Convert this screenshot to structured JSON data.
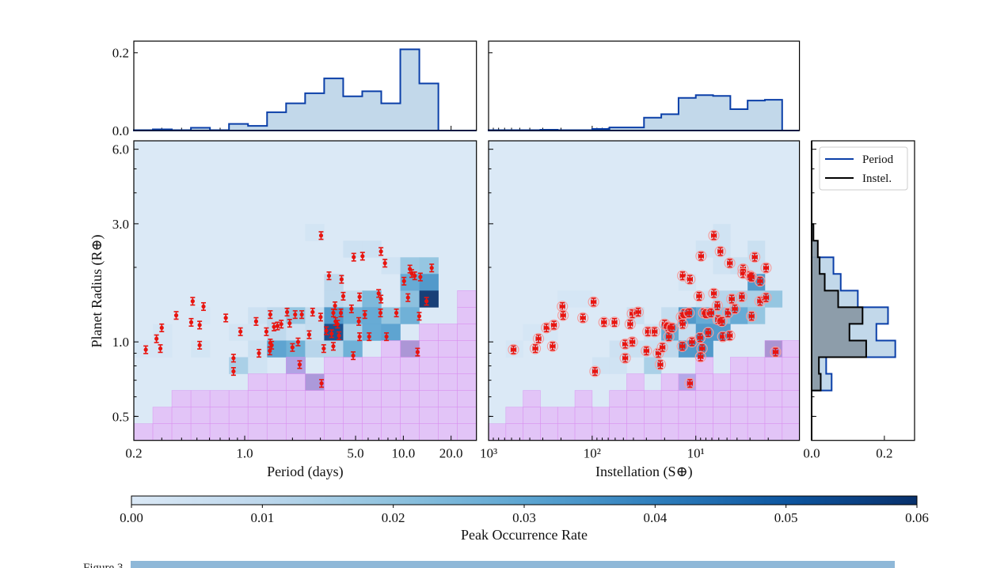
{
  "figure": {
    "caption_label": "Figure 3"
  },
  "chart_data": [
    {
      "id": "period-radius",
      "type": "heatmap",
      "xlabel": "Period (days)",
      "ylabel": "Planet Radius (R⊕)",
      "x_scale": "log",
      "y_scale": "log",
      "xlim": [
        0.2,
        28.9
      ],
      "ylim": [
        0.4,
        6.49
      ],
      "x_ticks": [
        {
          "v": 0.2,
          "label": "0.2"
        },
        {
          "v": 1.0,
          "label": "1.0"
        },
        {
          "v": 5.0,
          "label": "5.0"
        },
        {
          "v": 10.0,
          "label": "10.0"
        },
        {
          "v": 20.0,
          "label": "20.0"
        }
      ],
      "y_ticks": [
        {
          "v": 6.0,
          "label": "6.0"
        },
        {
          "v": 3.0,
          "label": "3.0"
        },
        {
          "v": 1.0,
          "label": "1.0"
        },
        {
          "v": 0.5,
          "label": "0.5"
        }
      ],
      "bins": {
        "x_n": 18,
        "y_n": 18
      },
      "cells": [
        [
          9,
          12,
          0.003
        ],
        [
          11,
          11,
          0.005
        ],
        [
          12,
          11,
          0.005
        ],
        [
          13,
          10,
          0.004
        ],
        [
          14,
          10,
          0.018
        ],
        [
          15,
          10,
          0.02
        ],
        [
          14,
          9,
          0.03
        ],
        [
          15,
          9,
          0.035
        ],
        [
          10,
          9,
          0.01
        ],
        [
          14,
          8,
          0.022
        ],
        [
          15,
          8,
          0.06
        ],
        [
          10,
          8,
          0.01
        ],
        [
          11,
          8,
          0.008
        ],
        [
          12,
          8,
          0.025
        ],
        [
          6,
          7,
          0.005
        ],
        [
          7,
          7,
          0.01
        ],
        [
          8,
          7,
          0.02
        ],
        [
          9,
          7,
          0.008
        ],
        [
          10,
          7,
          0.035
        ],
        [
          11,
          7,
          0.028
        ],
        [
          12,
          7,
          0.03
        ],
        [
          13,
          7,
          0.02
        ],
        [
          14,
          7,
          0.028
        ],
        [
          5,
          6,
          0.003
        ],
        [
          6,
          6,
          0.003
        ],
        [
          7,
          6,
          0.01
        ],
        [
          8,
          6,
          0.005
        ],
        [
          9,
          6,
          0.008
        ],
        [
          10,
          6,
          0.055
        ],
        [
          11,
          6,
          0.015
        ],
        [
          12,
          6,
          0.03
        ],
        [
          13,
          6,
          0.032
        ],
        [
          0,
          5,
          0.002
        ],
        [
          1,
          5,
          0.002
        ],
        [
          3,
          5,
          0.003
        ],
        [
          6,
          5,
          0.006
        ],
        [
          7,
          5,
          0.032
        ],
        [
          8,
          5,
          0.028
        ],
        [
          9,
          5,
          0.012
        ],
        [
          10,
          5,
          0.012
        ],
        [
          11,
          5,
          0.028
        ],
        [
          14,
          5,
          0.058
        ],
        [
          5,
          4,
          0.015
        ],
        [
          6,
          4,
          0.004
        ],
        [
          8,
          4,
          0.045
        ],
        [
          9,
          3,
          0.055
        ],
        [
          1,
          6,
          0.002
        ],
        [
          3,
          7,
          0.002
        ]
      ],
      "undetectable_rows_per_column": [
        1,
        2,
        3,
        3,
        3,
        3,
        4,
        4,
        4,
        4,
        5,
        5,
        5,
        6,
        6,
        7,
        7,
        9
      ],
      "undetectable_extra_cells": [
        [
          8,
          4
        ]
      ],
      "r_err_frac": 0.035,
      "points": [
        [
          0.238,
          0.93
        ],
        [
          0.278,
          1.03
        ],
        [
          0.294,
          0.94
        ],
        [
          0.3,
          1.14
        ],
        [
          0.37,
          1.28
        ],
        [
          0.47,
          1.46
        ],
        [
          0.46,
          1.2
        ],
        [
          0.52,
          1.17
        ],
        [
          0.52,
          0.97
        ],
        [
          0.55,
          1.39
        ],
        [
          0.76,
          1.25
        ],
        [
          0.94,
          1.1
        ],
        [
          0.85,
          0.86
        ],
        [
          0.85,
          0.76
        ],
        [
          1.18,
          1.21
        ],
        [
          1.23,
          0.9
        ],
        [
          1.37,
          1.1
        ],
        [
          1.45,
          1.29
        ],
        [
          1.45,
          0.99
        ],
        [
          1.44,
          0.92
        ],
        [
          1.48,
          0.97
        ],
        [
          1.53,
          1.15
        ],
        [
          1.61,
          1.16
        ],
        [
          1.7,
          1.18
        ],
        [
          1.85,
          1.32
        ],
        [
          1.92,
          1.19
        ],
        [
          2.08,
          1.29
        ],
        [
          2.29,
          1.29
        ],
        [
          2.0,
          0.95
        ],
        [
          2.17,
          1.0
        ],
        [
          2.22,
          0.81
        ],
        [
          2.68,
          1.32
        ],
        [
          2.55,
          1.07
        ],
        [
          3.03,
          2.69
        ],
        [
          3.01,
          1.26
        ],
        [
          3.15,
          0.94
        ],
        [
          3.05,
          0.68
        ],
        [
          3.4,
          1.85
        ],
        [
          4.08,
          1.79
        ],
        [
          3.27,
          1.11
        ],
        [
          3.53,
          1.08
        ],
        [
          3.62,
          1.31
        ],
        [
          3.71,
          1.4
        ],
        [
          3.74,
          1.21
        ],
        [
          3.85,
          1.18
        ],
        [
          3.93,
          1.06
        ],
        [
          4.04,
          1.31
        ],
        [
          3.62,
          0.96
        ],
        [
          4.18,
          1.53
        ],
        [
          4.71,
          1.36
        ],
        [
          4.87,
          2.2
        ],
        [
          5.53,
          2.22
        ],
        [
          5.3,
          1.52
        ],
        [
          5.24,
          1.21
        ],
        [
          5.3,
          1.05
        ],
        [
          4.83,
          0.88
        ],
        [
          5.72,
          1.29
        ],
        [
          6.09,
          1.05
        ],
        [
          6.99,
          1.57
        ],
        [
          7.23,
          1.49
        ],
        [
          7.23,
          2.32
        ],
        [
          7.66,
          2.08
        ],
        [
          7.18,
          1.31
        ],
        [
          7.83,
          1.05
        ],
        [
          9.04,
          1.31
        ],
        [
          10.1,
          1.76
        ],
        [
          10.7,
          1.51
        ],
        [
          11.0,
          1.97
        ],
        [
          11.3,
          1.89
        ],
        [
          11.8,
          1.85
        ],
        [
          12.8,
          1.83
        ],
        [
          12.6,
          1.27
        ],
        [
          12.3,
          0.91
        ],
        [
          14.0,
          1.46
        ],
        [
          15.1,
          1.99
        ]
      ]
    },
    {
      "id": "instellation-radius",
      "type": "heatmap",
      "xlabel": "Instellation (S⊕)",
      "x_scale": "log",
      "y_scale": "log",
      "x_reversed": true,
      "xlim": [
        1000,
        1.0
      ],
      "ylim": [
        0.4,
        6.49
      ],
      "x_ticks": [
        {
          "v": 1000,
          "label": "10³"
        },
        {
          "v": 100,
          "label": "10²"
        },
        {
          "v": 10,
          "label": "10¹"
        }
      ],
      "bins": {
        "x_n": 18,
        "y_n": 18
      },
      "cells": [
        [
          13,
          12,
          0.004
        ],
        [
          12,
          11,
          0.004
        ],
        [
          13,
          11,
          0.004
        ],
        [
          15,
          11,
          0.006
        ],
        [
          13,
          10,
          0.004
        ],
        [
          14,
          10,
          0.006
        ],
        [
          15,
          10,
          0.006
        ],
        [
          11,
          9,
          0.003
        ],
        [
          15,
          9,
          0.035
        ],
        [
          4,
          8,
          0.002
        ],
        [
          5,
          8,
          0.002
        ],
        [
          12,
          8,
          0.004
        ],
        [
          13,
          8,
          0.012
        ],
        [
          14,
          8,
          0.015
        ],
        [
          15,
          8,
          0.015
        ],
        [
          16,
          8,
          0.02
        ],
        [
          8,
          7,
          0.006
        ],
        [
          10,
          7,
          0.008
        ],
        [
          11,
          7,
          0.035
        ],
        [
          12,
          7,
          0.03
        ],
        [
          13,
          7,
          0.022
        ],
        [
          14,
          7,
          0.03
        ],
        [
          15,
          7,
          0.02
        ],
        [
          2,
          6,
          0.002
        ],
        [
          3,
          6,
          0.002
        ],
        [
          9,
          6,
          0.004
        ],
        [
          10,
          6,
          0.03
        ],
        [
          11,
          6,
          0.008
        ],
        [
          12,
          6,
          0.035
        ],
        [
          13,
          6,
          0.035
        ],
        [
          1,
          5,
          0.002
        ],
        [
          7,
          5,
          0.005
        ],
        [
          8,
          5,
          0.006
        ],
        [
          9,
          5,
          0.006
        ],
        [
          10,
          5,
          0.01
        ],
        [
          11,
          5,
          0.035
        ],
        [
          12,
          5,
          0.035
        ],
        [
          16,
          5,
          0.06
        ],
        [
          6,
          4,
          0.004
        ],
        [
          7,
          4,
          0.004
        ],
        [
          9,
          4,
          0.015
        ],
        [
          11,
          3,
          0.04
        ]
      ],
      "undetectable_rows_per_column": [
        1,
        2,
        3,
        2,
        2,
        3,
        2,
        3,
        4,
        3,
        4,
        4,
        5,
        4,
        5,
        5,
        6,
        6
      ],
      "undetectable_extra_cells": [],
      "r_err_frac": 0.035,
      "s_err_frac": 0.05,
      "points": [
        [
          575,
          0.93
        ],
        [
          354,
          0.94
        ],
        [
          330,
          1.03
        ],
        [
          276,
          1.14
        ],
        [
          241,
          0.96
        ],
        [
          234,
          1.17
        ],
        [
          194,
          1.39
        ],
        [
          191,
          1.28
        ],
        [
          123,
          1.25
        ],
        [
          97,
          1.45
        ],
        [
          94,
          0.76
        ],
        [
          77,
          1.2
        ],
        [
          61,
          1.2
        ],
        [
          48,
          0.98
        ],
        [
          48,
          0.86
        ],
        [
          43,
          1.18
        ],
        [
          41,
          1.3
        ],
        [
          41,
          1.0
        ],
        [
          36,
          1.32
        ],
        [
          30,
          0.92
        ],
        [
          29,
          1.1
        ],
        [
          25,
          1.1
        ],
        [
          23,
          0.9
        ],
        [
          22,
          0.81
        ],
        [
          21,
          0.95
        ],
        [
          20,
          1.18
        ],
        [
          18.5,
          1.15
        ],
        [
          18.2,
          1.05
        ],
        [
          17,
          1.14
        ],
        [
          13.8,
          1.26
        ],
        [
          13.4,
          1.18
        ],
        [
          13.4,
          1.85
        ],
        [
          12.9,
          1.3
        ],
        [
          11.4,
          1.79
        ],
        [
          11.6,
          1.31
        ],
        [
          13.5,
          0.96
        ],
        [
          11.4,
          0.68
        ],
        [
          10.9,
          1.0
        ],
        [
          9.3,
          1.53
        ],
        [
          8.9,
          2.22
        ],
        [
          9.1,
          1.04
        ],
        [
          8.7,
          0.94
        ],
        [
          9.0,
          0.87
        ],
        [
          8.4,
          1.31
        ],
        [
          7.9,
          1.3
        ],
        [
          7.6,
          1.09
        ],
        [
          7.1,
          1.31
        ],
        [
          6.7,
          2.69
        ],
        [
          6.7,
          1.57
        ],
        [
          6.2,
          1.4
        ],
        [
          6.1,
          1.23
        ],
        [
          5.8,
          2.32
        ],
        [
          5.6,
          1.21
        ],
        [
          5.5,
          1.05
        ],
        [
          4.9,
          1.31
        ],
        [
          4.7,
          2.08
        ],
        [
          4.7,
          1.06
        ],
        [
          4.5,
          1.49
        ],
        [
          4.2,
          1.36
        ],
        [
          3.6,
          1.52
        ],
        [
          3.5,
          1.97
        ],
        [
          3.5,
          1.89
        ],
        [
          3.0,
          1.85
        ],
        [
          2.9,
          1.83
        ],
        [
          2.9,
          1.27
        ],
        [
          2.7,
          2.2
        ],
        [
          2.4,
          1.76
        ],
        [
          2.4,
          1.46
        ],
        [
          2.1,
          1.99
        ],
        [
          2.1,
          1.51
        ],
        [
          1.7,
          0.91
        ]
      ]
    },
    {
      "id": "period-marginal",
      "type": "bar",
      "ylim": [
        0,
        0.23
      ],
      "y_ticks": [
        {
          "v": 0.0,
          "label": "0.0"
        },
        {
          "v": 0.2,
          "label": "0.2"
        }
      ],
      "values": [
        0.001,
        0.003,
        0.001,
        0.007,
        0.001,
        0.017,
        0.012,
        0.047,
        0.07,
        0.096,
        0.134,
        0.088,
        0.101,
        0.07,
        0.209,
        0.121,
        0,
        0
      ]
    },
    {
      "id": "instellation-marginal",
      "type": "bar",
      "ylim": [
        0,
        0.23
      ],
      "values": [
        0.001,
        0.001,
        0.001,
        0.002,
        0.001,
        0.001,
        0.004,
        0.008,
        0.008,
        0.033,
        0.042,
        0.084,
        0.091,
        0.089,
        0.055,
        0.077,
        0.079,
        0
      ]
    },
    {
      "id": "radius-marginal",
      "type": "bar",
      "orientation": "horizontal",
      "xlim": [
        0,
        0.283
      ],
      "x_ticks": [
        {
          "v": 0.0,
          "label": "0.0"
        },
        {
          "v": 0.2,
          "label": "0.2"
        }
      ],
      "legend": {
        "placement": "top-right",
        "entries": [
          "Period",
          "Instel."
        ]
      },
      "series": [
        {
          "name": "Period",
          "color": "#0b3fa8",
          "fill": "#c2d8ea",
          "values": [
            0,
            0,
            0,
            0.055,
            0.04,
            0.23,
            0.178,
            0.21,
            0.127,
            0.08,
            0.06,
            0,
            0,
            0,
            0,
            0,
            0,
            0
          ]
        },
        {
          "name": "Instel.",
          "color": "#000000",
          "fill": "#8a9aa6",
          "values": [
            0,
            0,
            0,
            0.025,
            0.02,
            0.15,
            0.104,
            0.14,
            0.073,
            0.036,
            0.022,
            0.017,
            0.005,
            0,
            0,
            0,
            0,
            0
          ]
        }
      ]
    },
    {
      "id": "colorbar",
      "type": "colorbar",
      "label": "Peak Occurrence Rate",
      "range": [
        0,
        0.06
      ],
      "ticks": [
        "0.00",
        "0.01",
        "0.02",
        "0.03",
        "0.04",
        "0.05",
        "0.06"
      ],
      "colormap": "Blues"
    }
  ],
  "colors": {
    "undetectable_fill": "#e4b6f6",
    "undetectable_edge": "#d98cf0",
    "point": "#e8140f",
    "hist_line": "#0b3fa8",
    "hist_fill": "#c2d8ea"
  }
}
